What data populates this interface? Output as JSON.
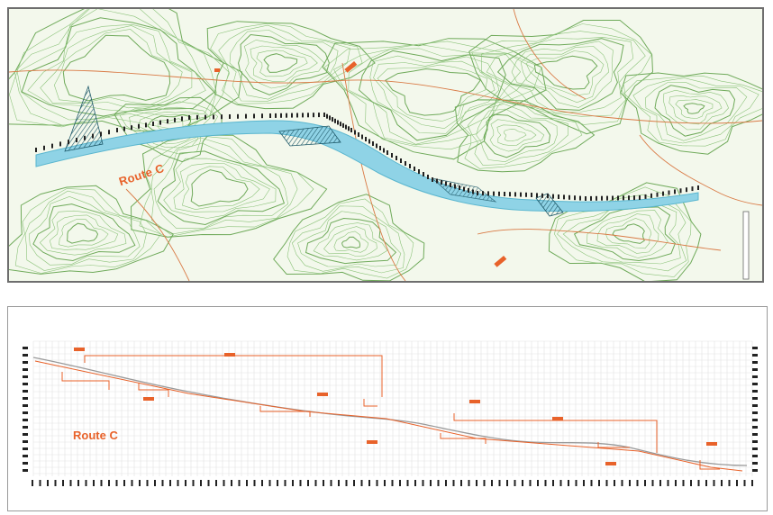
{
  "map": {
    "route_label": "Route C",
    "colors": {
      "background": "#f3f8ec",
      "contour": "#8cc37a",
      "contour_dark": "#6faa5a",
      "road": "#d97a45",
      "corridor": "#8fd3e6",
      "corridor_edge": "#5ab6cf",
      "hatch": "#1f5a6a",
      "station_ticks": "#222222"
    },
    "icons": [
      "station-tick-icon",
      "hatch-fill-icon"
    ]
  },
  "profile": {
    "route_label": "Route C",
    "colors": {
      "grid": "#dcdcdc",
      "ground": "#9a9a9a",
      "grade": "#e8622a",
      "ticks": "#222222"
    }
  }
}
